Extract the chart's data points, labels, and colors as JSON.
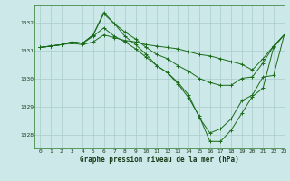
{
  "title": "Graphe pression niveau de la mer (hPa)",
  "bg_color": "#cce8e8",
  "grid_color": "#aacccc",
  "line_color": "#1a6b1a",
  "xlim": [
    -0.5,
    23
  ],
  "ylim": [
    1027.5,
    1032.6
  ],
  "yticks": [
    1028,
    1029,
    1030,
    1031,
    1032
  ],
  "xticks": [
    0,
    1,
    2,
    3,
    4,
    5,
    6,
    7,
    8,
    9,
    10,
    11,
    12,
    13,
    14,
    15,
    16,
    17,
    18,
    19,
    20,
    21,
    22,
    23
  ],
  "series": [
    {
      "x": [
        0,
        1,
        2,
        3,
        4,
        5,
        6,
        7,
        8,
        9,
        10,
        11,
        12,
        13,
        14,
        15,
        16,
        17,
        18,
        19,
        20,
        21,
        22,
        23
      ],
      "y": [
        1031.1,
        1031.15,
        1031.2,
        1031.25,
        1031.2,
        1031.3,
        1031.55,
        1031.45,
        1031.35,
        1031.3,
        1031.2,
        1031.15,
        1031.1,
        1031.05,
        1030.95,
        1030.85,
        1030.8,
        1030.7,
        1030.6,
        1030.5,
        1030.3,
        1030.7,
        1031.15,
        1031.55
      ]
    },
    {
      "x": [
        0,
        1,
        2,
        3,
        4,
        5,
        6,
        7,
        8,
        9,
        10,
        11,
        12,
        13,
        14,
        15,
        16,
        17,
        18,
        19,
        20,
        21,
        22,
        23
      ],
      "y": [
        1031.1,
        1031.15,
        1031.2,
        1031.3,
        1031.25,
        1031.55,
        1032.3,
        1031.95,
        1031.65,
        1031.4,
        1031.1,
        1030.85,
        1030.7,
        1030.45,
        1030.25,
        1030.0,
        1029.85,
        1029.75,
        1029.75,
        1030.0,
        1030.05,
        1030.55,
        1031.15,
        1031.55
      ]
    },
    {
      "x": [
        0,
        1,
        2,
        3,
        4,
        5,
        6,
        7,
        8,
        9,
        10,
        11,
        12,
        13,
        14,
        15,
        16,
        17,
        18,
        19,
        20,
        21,
        22,
        23
      ],
      "y": [
        1031.1,
        1031.15,
        1031.2,
        1031.3,
        1031.25,
        1031.55,
        1032.35,
        1031.95,
        1031.5,
        1031.2,
        1030.85,
        1030.45,
        1030.2,
        1029.8,
        1029.3,
        1028.65,
        1027.75,
        1027.75,
        1028.15,
        1028.75,
        1029.35,
        1029.65,
        1031.1,
        1031.55
      ]
    },
    {
      "x": [
        0,
        1,
        2,
        3,
        4,
        5,
        6,
        7,
        8,
        9,
        10,
        11,
        12,
        13,
        14,
        15,
        16,
        17,
        18,
        19,
        20,
        21,
        22,
        23
      ],
      "y": [
        1031.1,
        1031.15,
        1031.2,
        1031.3,
        1031.25,
        1031.5,
        1031.8,
        1031.5,
        1031.3,
        1031.05,
        1030.75,
        1030.45,
        1030.2,
        1029.85,
        1029.4,
        1028.6,
        1028.05,
        1028.2,
        1028.55,
        1029.2,
        1029.4,
        1030.05,
        1030.1,
        1031.55
      ]
    }
  ]
}
